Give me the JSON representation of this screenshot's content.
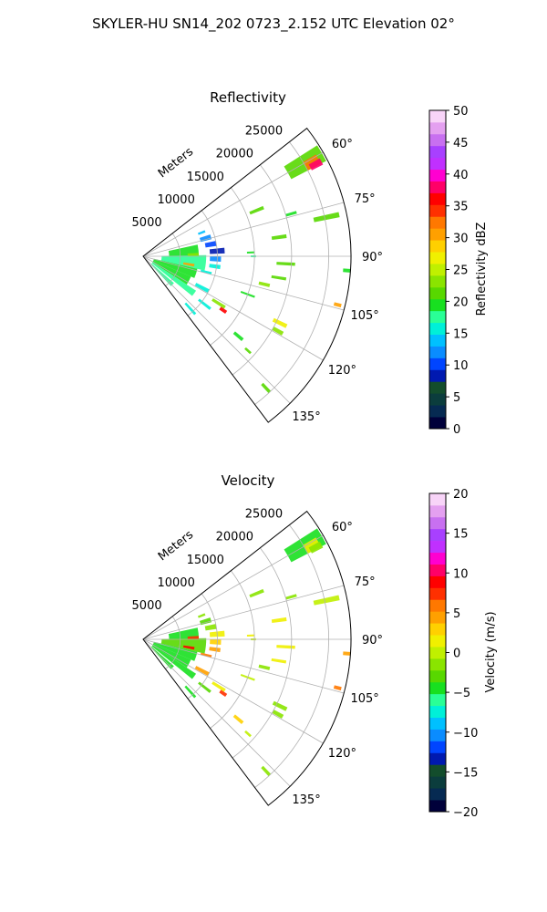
{
  "figure": {
    "suptitle": "SKYLER-HU  SN14_202  0723_2.152 UTC Elevation 02°"
  },
  "chart_data": [
    {
      "type": "heatmap",
      "title": "Reflectivity",
      "range_axis_label": "Meters",
      "range_ticks": [
        5000,
        10000,
        15000,
        20000,
        25000
      ],
      "range_tick_labels": [
        "5000",
        "10000",
        "15000",
        "20000",
        "25000"
      ],
      "range_max": 28000,
      "azimuth_range_deg": [
        52,
        143
      ],
      "azimuth_ticks_deg": [
        60,
        75,
        90,
        105,
        120,
        135
      ],
      "azimuth_tick_labels": [
        "60°",
        "75°",
        "90°",
        "105°",
        "120°",
        "135°"
      ],
      "grid": true,
      "colorbar": {
        "label": "Reflectivity dBZ",
        "range": [
          0,
          50
        ],
        "ticks": [
          0,
          5,
          10,
          15,
          20,
          25,
          30,
          35,
          40,
          45,
          50
        ],
        "tick_labels": [
          "0",
          "5",
          "10",
          "15",
          "20",
          "25",
          "30",
          "35",
          "40",
          "45",
          "50"
        ],
        "colors": [
          "#00003a",
          "#062a52",
          "#0b3d3d",
          "#134d2c",
          "#0019b0",
          "#0045ff",
          "#0a8cff",
          "#00c0ff",
          "#00f0d8",
          "#2aff96",
          "#18e020",
          "#58d800",
          "#8ae400",
          "#c0f000",
          "#f0f000",
          "#ffd000",
          "#ffa000",
          "#ff7800",
          "#ff3000",
          "#ff0000",
          "#ff0068",
          "#ff00d0",
          "#c030ff",
          "#a840ff",
          "#c870f0",
          "#e4a0f0",
          "#f8d4f8"
        ]
      },
      "echoes": [
        {
          "az": 60,
          "r0": 22500,
          "r1": 27800,
          "w": 5,
          "value": 22
        },
        {
          "az": 61,
          "r0": 25000,
          "r1": 27000,
          "w": 3,
          "value": 32
        },
        {
          "az": 62,
          "r0": 25500,
          "r1": 27200,
          "w": 2,
          "value": 38
        },
        {
          "az": 68,
          "r0": 15500,
          "r1": 17500,
          "w": 1.5,
          "value": 22
        },
        {
          "az": 74,
          "r0": 20000,
          "r1": 21500,
          "w": 1,
          "value": 20
        },
        {
          "az": 78,
          "r0": 23500,
          "r1": 27000,
          "w": 1.5,
          "value": 22
        },
        {
          "az": 82,
          "r0": 17500,
          "r1": 19500,
          "w": 1.5,
          "value": 22
        },
        {
          "az": 88,
          "r0": 14000,
          "r1": 15000,
          "w": 1,
          "value": 20
        },
        {
          "az": 90,
          "r0": 14500,
          "r1": 15200,
          "w": 1,
          "value": 18
        },
        {
          "az": 93,
          "r0": 18000,
          "r1": 20500,
          "w": 1.2,
          "value": 22
        },
        {
          "az": 99,
          "r0": 17500,
          "r1": 19500,
          "w": 1.2,
          "value": 22
        },
        {
          "az": 103,
          "r0": 16000,
          "r1": 17500,
          "w": 1.5,
          "value": 24
        },
        {
          "az": 104,
          "r0": 26500,
          "r1": 27500,
          "w": 1,
          "value": 30
        },
        {
          "az": 94,
          "r0": 27000,
          "r1": 28000,
          "w": 1,
          "value": 20
        },
        {
          "az": 110,
          "r0": 14000,
          "r1": 16000,
          "w": 1,
          "value": 20
        },
        {
          "az": 116,
          "r0": 19500,
          "r1": 21500,
          "w": 1.5,
          "value": 26
        },
        {
          "az": 119,
          "r0": 20000,
          "r1": 21500,
          "w": 1.5,
          "value": 24
        },
        {
          "az": 130,
          "r0": 16000,
          "r1": 17500,
          "w": 1.5,
          "value": 20
        },
        {
          "az": 132,
          "r0": 18500,
          "r1": 19500,
          "w": 1,
          "value": 22
        },
        {
          "az": 137,
          "r0": 23500,
          "r1": 25000,
          "w": 1,
          "value": 22
        },
        {
          "az": 68,
          "r0": 8000,
          "r1": 9000,
          "w": 2,
          "value": 14
        },
        {
          "az": 74,
          "r0": 8000,
          "r1": 9500,
          "w": 4,
          "value": 12
        },
        {
          "az": 80,
          "r0": 8500,
          "r1": 10000,
          "w": 4,
          "value": 10
        },
        {
          "az": 86,
          "r0": 9000,
          "r1": 11000,
          "w": 4,
          "value": 8
        },
        {
          "az": 92,
          "r0": 9000,
          "r1": 10500,
          "w": 4,
          "value": 12
        },
        {
          "az": 98,
          "r0": 9000,
          "r1": 10500,
          "w": 3,
          "value": 16
        },
        {
          "az": 104,
          "r0": 8000,
          "r1": 9500,
          "w": 2,
          "value": 15
        },
        {
          "az": 84,
          "r0": 3500,
          "r1": 7500,
          "w": 12,
          "value": 20
        },
        {
          "az": 96,
          "r0": 2500,
          "r1": 8500,
          "w": 14,
          "value": 18
        },
        {
          "az": 108,
          "r0": 1500,
          "r1": 7500,
          "w": 10,
          "value": 19
        },
        {
          "az": 118,
          "r0": 1500,
          "r1": 7000,
          "w": 10,
          "value": 20
        },
        {
          "az": 126,
          "r0": 1500,
          "r1": 8500,
          "w": 6,
          "value": 18
        },
        {
          "az": 134,
          "r0": 1500,
          "r1": 5500,
          "w": 6,
          "value": 17
        },
        {
          "az": 122,
          "r0": 11000,
          "r1": 13000,
          "w": 2,
          "value": 23
        },
        {
          "az": 124,
          "r0": 12500,
          "r1": 13500,
          "w": 2,
          "value": 36
        },
        {
          "az": 118,
          "r0": 8000,
          "r1": 10000,
          "w": 3,
          "value": 15
        },
        {
          "az": 128,
          "r0": 9500,
          "r1": 11500,
          "w": 2,
          "value": 16
        },
        {
          "az": 138,
          "r0": 8500,
          "r1": 10500,
          "w": 2,
          "value": 15
        },
        {
          "az": 100,
          "r0": 5500,
          "r1": 7000,
          "w": 3,
          "value": 30
        },
        {
          "az": 88,
          "r0": 6000,
          "r1": 7500,
          "w": 3,
          "value": 24
        }
      ]
    },
    {
      "type": "heatmap",
      "title": "Velocity",
      "range_axis_label": "Meters",
      "range_ticks": [
        5000,
        10000,
        15000,
        20000,
        25000
      ],
      "range_tick_labels": [
        "5000",
        "10000",
        "15000",
        "20000",
        "25000"
      ],
      "range_max": 28000,
      "azimuth_range_deg": [
        52,
        143
      ],
      "azimuth_ticks_deg": [
        60,
        75,
        90,
        105,
        120,
        135
      ],
      "azimuth_tick_labels": [
        "60°",
        "75°",
        "90°",
        "105°",
        "120°",
        "135°"
      ],
      "grid": true,
      "colorbar": {
        "label": "Velocity (m/s)",
        "range": [
          -20,
          20
        ],
        "ticks": [
          -20,
          -15,
          -10,
          -5,
          0,
          5,
          10,
          15,
          20
        ],
        "tick_labels": [
          "−20",
          "−15",
          "−10",
          "−5",
          "0",
          "5",
          "10",
          "15",
          "20"
        ],
        "colors": [
          "#00003a",
          "#062a52",
          "#0b3d3d",
          "#134d2c",
          "#0019b0",
          "#0045ff",
          "#0a8cff",
          "#00c0ff",
          "#00f0d8",
          "#2aff96",
          "#18e020",
          "#58d800",
          "#8ae400",
          "#c0f000",
          "#f0f000",
          "#ffd000",
          "#ffa000",
          "#ff7800",
          "#ff3000",
          "#ff0000",
          "#ff0068",
          "#ff00d0",
          "#c030ff",
          "#a840ff",
          "#c870f0",
          "#e4a0f0",
          "#f8d4f8"
        ]
      },
      "echoes": [
        {
          "az": 60,
          "r0": 22500,
          "r1": 27800,
          "w": 5,
          "value": -4
        },
        {
          "az": 61,
          "r0": 25000,
          "r1": 27000,
          "w": 3,
          "value": 1
        },
        {
          "az": 62,
          "r0": 25500,
          "r1": 27200,
          "w": 2,
          "value": -2
        },
        {
          "az": 68,
          "r0": 15500,
          "r1": 17500,
          "w": 1.5,
          "value": -2
        },
        {
          "az": 74,
          "r0": 20000,
          "r1": 21500,
          "w": 1,
          "value": -1
        },
        {
          "az": 78,
          "r0": 23500,
          "r1": 27000,
          "w": 1.5,
          "value": 0
        },
        {
          "az": 82,
          "r0": 17500,
          "r1": 19500,
          "w": 1.5,
          "value": 2
        },
        {
          "az": 88,
          "r0": 14000,
          "r1": 15000,
          "w": 1,
          "value": 2
        },
        {
          "az": 90,
          "r0": 14500,
          "r1": 15200,
          "w": 1,
          "value": 0
        },
        {
          "az": 93,
          "r0": 18000,
          "r1": 20500,
          "w": 1.2,
          "value": 1
        },
        {
          "az": 99,
          "r0": 17500,
          "r1": 19500,
          "w": 1.2,
          "value": 2
        },
        {
          "az": 103,
          "r0": 16000,
          "r1": 17500,
          "w": 1.5,
          "value": -1
        },
        {
          "az": 104,
          "r0": 26500,
          "r1": 27500,
          "w": 1,
          "value": 6
        },
        {
          "az": 94,
          "r0": 27000,
          "r1": 28000,
          "w": 1,
          "value": 5
        },
        {
          "az": 110,
          "r0": 14000,
          "r1": 16000,
          "w": 1,
          "value": 0
        },
        {
          "az": 116,
          "r0": 19500,
          "r1": 21500,
          "w": 1.5,
          "value": -2
        },
        {
          "az": 119,
          "r0": 20000,
          "r1": 21500,
          "w": 1.5,
          "value": -1
        },
        {
          "az": 130,
          "r0": 16000,
          "r1": 17500,
          "w": 1.5,
          "value": 3
        },
        {
          "az": 132,
          "r0": 18500,
          "r1": 19500,
          "w": 1,
          "value": 0
        },
        {
          "az": 137,
          "r0": 23500,
          "r1": 25000,
          "w": 1,
          "value": -1
        },
        {
          "az": 68,
          "r0": 8000,
          "r1": 9000,
          "w": 2,
          "value": -2
        },
        {
          "az": 74,
          "r0": 8000,
          "r1": 9500,
          "w": 4,
          "value": -3
        },
        {
          "az": 80,
          "r0": 8500,
          "r1": 10000,
          "w": 4,
          "value": -2
        },
        {
          "az": 86,
          "r0": 9000,
          "r1": 11000,
          "w": 4,
          "value": 2
        },
        {
          "az": 92,
          "r0": 9000,
          "r1": 10500,
          "w": 4,
          "value": 3
        },
        {
          "az": 98,
          "r0": 9000,
          "r1": 10500,
          "w": 3,
          "value": 4
        },
        {
          "az": 104,
          "r0": 8000,
          "r1": 9500,
          "w": 2,
          "value": 6
        },
        {
          "az": 84,
          "r0": 3500,
          "r1": 7500,
          "w": 12,
          "value": -4
        },
        {
          "az": 96,
          "r0": 2500,
          "r1": 8500,
          "w": 14,
          "value": -3
        },
        {
          "az": 108,
          "r0": 1500,
          "r1": 7500,
          "w": 10,
          "value": -5
        },
        {
          "az": 118,
          "r0": 1500,
          "r1": 7000,
          "w": 10,
          "value": -4
        },
        {
          "az": 126,
          "r0": 1500,
          "r1": 8500,
          "w": 6,
          "value": -5
        },
        {
          "az": 134,
          "r0": 1500,
          "r1": 5500,
          "w": 6,
          "value": -4
        },
        {
          "az": 122,
          "r0": 11000,
          "r1": 13000,
          "w": 2,
          "value": 2
        },
        {
          "az": 124,
          "r0": 12500,
          "r1": 13500,
          "w": 2,
          "value": 8
        },
        {
          "az": 118,
          "r0": 8000,
          "r1": 10000,
          "w": 3,
          "value": 4
        },
        {
          "az": 128,
          "r0": 9500,
          "r1": 11500,
          "w": 2,
          "value": -3
        },
        {
          "az": 138,
          "r0": 8500,
          "r1": 10500,
          "w": 2,
          "value": -5
        },
        {
          "az": 100,
          "r0": 5500,
          "r1": 7000,
          "w": 3,
          "value": 9
        },
        {
          "az": 88,
          "r0": 6000,
          "r1": 7500,
          "w": 3,
          "value": 7
        }
      ]
    }
  ]
}
